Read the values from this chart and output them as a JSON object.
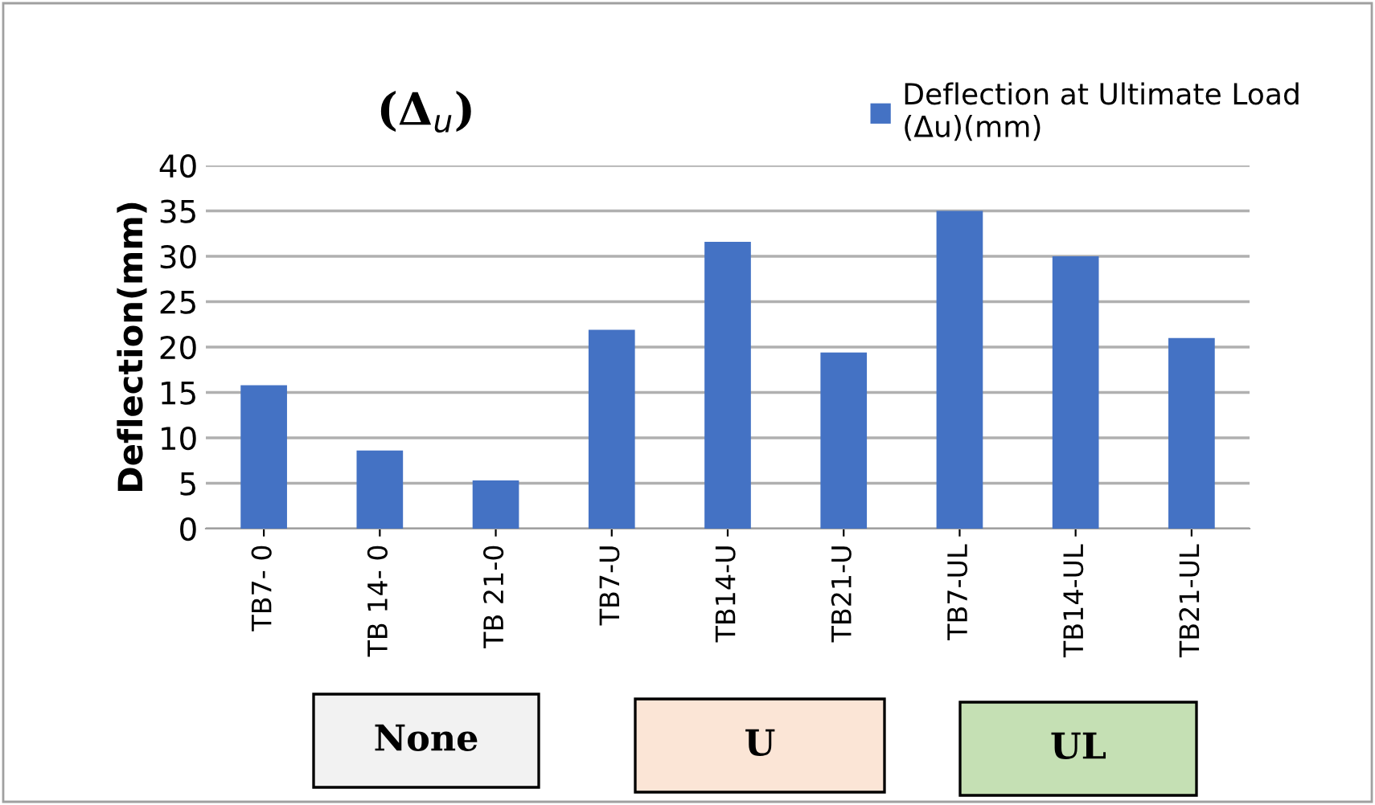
{
  "chart_data": {
    "type": "bar",
    "title": "(Δ$_{u}$)",
    "ylabel": "Deflection(mm)",
    "categories": [
      "TB7- 0",
      "TB 14- 0",
      "TB 21-0",
      "TB7-U",
      "TB14-U",
      "TB21-U",
      "TB7-UL",
      "TB14-UL",
      "TB21-UL"
    ],
    "series": [
      {
        "name": "Deflection at Ultimate Load\n(Δu)(mm)",
        "color": "#4472c4",
        "values": [
          15.8,
          8.6,
          5.3,
          21.9,
          31.6,
          19.4,
          35,
          30,
          21
        ]
      }
    ],
    "ylim": [
      0,
      40
    ],
    "yticks": [
      0,
      5,
      10,
      15,
      20,
      25,
      30,
      35,
      40
    ],
    "grid": "y",
    "legend": "top right",
    "annotations": [
      "None",
      "U",
      "UL"
    ]
  }
}
